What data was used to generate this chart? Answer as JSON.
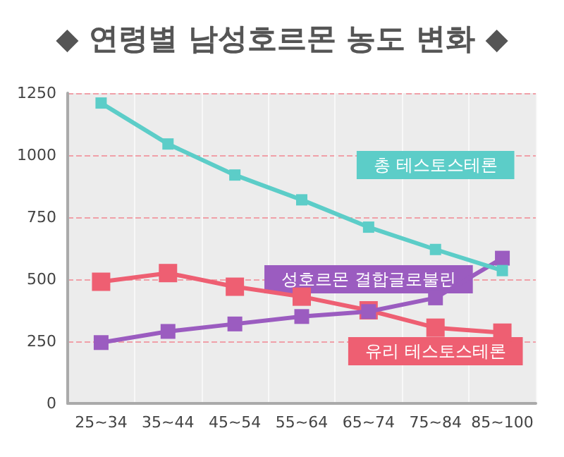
{
  "chart_data": {
    "type": "line",
    "title": "◆ 연령별 남성호르몬 농도 변화 ◆",
    "categories": [
      "25~34",
      "35~44",
      "45~54",
      "55~64",
      "65~74",
      "75~84",
      "85~100"
    ],
    "series": [
      {
        "name": "총 테스토스테론",
        "color": "#5ccdc8",
        "values": [
          1210,
          1045,
          920,
          820,
          710,
          620,
          535
        ]
      },
      {
        "name": "성호르몬 결합글로불린",
        "color": "#9b5cc0",
        "values": [
          245,
          290,
          320,
          350,
          370,
          425,
          585
        ]
      },
      {
        "name": "유리 테스토스테론",
        "color": "#ee5f72",
        "values": [
          490,
          525,
          470,
          430,
          375,
          305,
          285
        ]
      }
    ],
    "ylim": [
      0,
      1250
    ],
    "yticks": [
      0,
      250,
      500,
      750,
      1000,
      1250
    ],
    "grid": "y",
    "legend": false,
    "marker": "square",
    "line_style": "solid"
  }
}
